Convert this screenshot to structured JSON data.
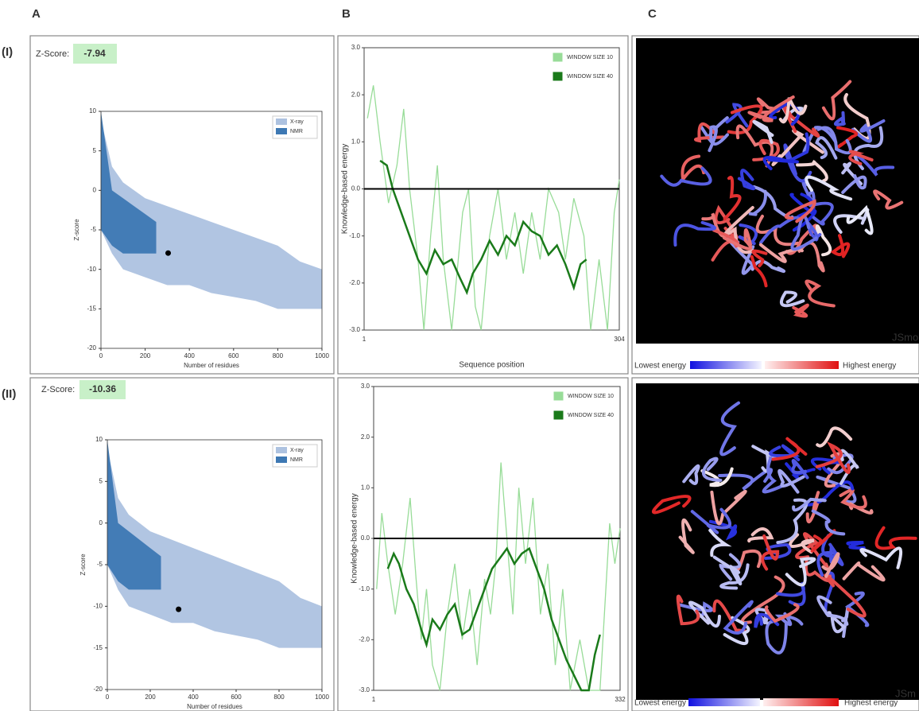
{
  "panels": [
    "A",
    "B",
    "C"
  ],
  "rows": [
    {
      "label": "(I)",
      "zscore_label": "Z-Score:",
      "zscore": -7.94,
      "structure": {
        "lowest": "Lowest energy",
        "highest": "Highest energy",
        "watermark": "JSmo"
      }
    },
    {
      "label": "(II)",
      "zscore_label": "Z-Score:",
      "zscore": -10.36,
      "structure": {
        "lowest": "Lowest energy",
        "highest": "Highest energy",
        "watermark": "JSm"
      }
    }
  ],
  "chart_data": [
    {
      "type": "scatter",
      "xlabel": "Number of residues",
      "ylabel": "Z-score",
      "xlim": [
        0,
        1000
      ],
      "xticks": [
        0,
        200,
        400,
        600,
        800,
        1000
      ],
      "ylim": [
        -20,
        10
      ],
      "yticks": [
        -20,
        -15,
        -10,
        -5,
        0,
        5,
        10
      ],
      "legend": "upper right",
      "series": [
        {
          "name": "X-ray",
          "color": "#adc2e0",
          "x": [
            0,
            50,
            100,
            200,
            300,
            400,
            500,
            600,
            700,
            800,
            900,
            1000
          ],
          "high": [
            9,
            3,
            1,
            -1,
            -2,
            -3,
            -4,
            -5,
            -6,
            -7,
            -9,
            -10
          ],
          "low": [
            -5,
            -8,
            -10,
            -11,
            -12,
            -12,
            -13,
            -13.5,
            -14,
            -15,
            -15,
            -15
          ]
        },
        {
          "name": "NMR",
          "color": "#3d78b3",
          "x": [
            0,
            50,
            100,
            150,
            200,
            250
          ],
          "high": [
            10,
            0,
            -1,
            -2,
            -3,
            -4
          ],
          "low": [
            -5,
            -7,
            -8,
            -8,
            -8,
            -8
          ]
        }
      ],
      "highlight": {
        "x": 304,
        "y": -7.94
      }
    },
    {
      "type": "line",
      "xlabel": "Sequence position",
      "ylabel": "Knowledge-based energy",
      "xlim": [
        1,
        304
      ],
      "xticks": [
        1,
        304
      ],
      "ylim": [
        -3,
        3
      ],
      "yticks": [
        {
          "value": 3,
          "label": "3.0"
        },
        {
          "value": 2,
          "label": "2.0"
        },
        {
          "value": 1,
          "label": "1.0"
        },
        {
          "value": 0,
          "label": "0.0"
        },
        {
          "value": -1,
          "label": "-1.0"
        },
        {
          "value": -2,
          "label": "-2.0"
        },
        {
          "value": -3,
          "label": "-3.0"
        }
      ],
      "zero_line": 0,
      "legend": "upper right",
      "series": [
        {
          "name": "WINDOW SIZE 10",
          "color": "#98dc98",
          "x": [
            5,
            12,
            20,
            30,
            40,
            48,
            55,
            65,
            72,
            80,
            88,
            95,
            105,
            118,
            125,
            133,
            140,
            150,
            160,
            170,
            180,
            190,
            200,
            210,
            220,
            232,
            240,
            250,
            262,
            270,
            280,
            290,
            298,
            304
          ],
          "values": [
            1.5,
            2.2,
            1.0,
            -0.3,
            0.5,
            1.7,
            0.0,
            -1.5,
            -3.0,
            -1.0,
            0.5,
            -1.5,
            -3.0,
            -0.5,
            0.0,
            -2.5,
            -3.0,
            -1.0,
            0.0,
            -1.5,
            -0.5,
            -1.8,
            -0.5,
            -1.5,
            0.0,
            -0.5,
            -1.5,
            -0.2,
            -1.0,
            -3.0,
            -1.5,
            -3.0,
            -0.5,
            0.2
          ]
        },
        {
          "name": "WINDOW SIZE 40",
          "color": "#1a7a1a",
          "x": [
            20,
            28,
            35,
            45,
            55,
            65,
            75,
            85,
            95,
            105,
            115,
            123,
            130,
            140,
            150,
            160,
            170,
            180,
            190,
            200,
            210,
            220,
            230,
            240,
            250,
            258,
            265
          ],
          "values": [
            0.6,
            0.5,
            0.0,
            -0.5,
            -1.0,
            -1.5,
            -1.8,
            -1.3,
            -1.6,
            -1.5,
            -1.9,
            -2.2,
            -1.8,
            -1.5,
            -1.1,
            -1.4,
            -1.0,
            -1.2,
            -0.7,
            -0.9,
            -1.0,
            -1.4,
            -1.2,
            -1.6,
            -2.1,
            -1.6,
            -1.5
          ]
        }
      ]
    },
    {
      "type": "scatter",
      "xlabel": "Number of residues",
      "ylabel": "Z-score",
      "xlim": [
        0,
        1000
      ],
      "xticks": [
        0,
        200,
        400,
        600,
        800,
        1000
      ],
      "ylim": [
        -20,
        10
      ],
      "yticks": [
        -20,
        -15,
        -10,
        -5,
        0,
        5,
        10
      ],
      "legend": "upper right",
      "series": [
        {
          "name": "X-ray",
          "color": "#adc2e0",
          "x": [
            0,
            50,
            100,
            200,
            300,
            400,
            500,
            600,
            700,
            800,
            900,
            1000
          ],
          "high": [
            9,
            3,
            1,
            -1,
            -2,
            -3,
            -4,
            -5,
            -6,
            -7,
            -9,
            -10
          ],
          "low": [
            -5,
            -8,
            -10,
            -11,
            -12,
            -12,
            -13,
            -13.5,
            -14,
            -15,
            -15,
            -15
          ]
        },
        {
          "name": "NMR",
          "color": "#3d78b3",
          "x": [
            0,
            50,
            100,
            150,
            200,
            250
          ],
          "high": [
            10,
            0,
            -1,
            -2,
            -3,
            -4
          ],
          "low": [
            -5,
            -7,
            -8,
            -8,
            -8,
            -8
          ]
        }
      ],
      "highlight": {
        "x": 332,
        "y": -10.36
      }
    },
    {
      "type": "line",
      "ylabel": "Knowledge-based energy",
      "xlim": [
        1,
        332
      ],
      "xticks": [
        1,
        332
      ],
      "ylim": [
        -3,
        3
      ],
      "yticks": [
        {
          "value": 3,
          "label": "3.0"
        },
        {
          "value": 2,
          "label": "2.0"
        },
        {
          "value": 1,
          "label": "1.0"
        },
        {
          "value": 0,
          "label": "0.0"
        },
        {
          "value": -1,
          "label": "-1.0"
        },
        {
          "value": -2,
          "label": "-2.0"
        },
        {
          "value": -3,
          "label": "-3.0"
        }
      ],
      "zero_line": 0,
      "legend": "upper right",
      "series": [
        {
          "name": "WINDOW SIZE 10",
          "color": "#98dc98",
          "x": [
            5,
            12,
            20,
            30,
            40,
            50,
            58,
            65,
            72,
            80,
            90,
            100,
            110,
            120,
            130,
            140,
            150,
            158,
            165,
            172,
            180,
            188,
            196,
            205,
            215,
            225,
            235,
            245,
            255,
            265,
            278,
            290,
            305,
            318,
            325,
            332
          ],
          "values": [
            -1.0,
            0.5,
            -0.5,
            -1.5,
            -0.5,
            0.8,
            -0.8,
            -2.0,
            -1.0,
            -2.5,
            -3.0,
            -1.5,
            -0.5,
            -2.0,
            -1.0,
            -2.5,
            -0.8,
            -1.5,
            -0.5,
            1.5,
            0.0,
            -1.5,
            1.0,
            -0.5,
            0.8,
            -1.5,
            -0.5,
            -2.5,
            -1.0,
            -3.0,
            -2.0,
            -3.0,
            -3.0,
            0.3,
            -0.5,
            0.2
          ]
        },
        {
          "name": "WINDOW SIZE 40",
          "color": "#1a7a1a",
          "x": [
            20,
            28,
            35,
            45,
            55,
            65,
            72,
            80,
            90,
            100,
            110,
            120,
            130,
            140,
            150,
            160,
            170,
            180,
            190,
            200,
            210,
            220,
            230,
            240,
            250,
            260,
            270,
            280,
            290,
            298,
            305
          ],
          "values": [
            -0.6,
            -0.3,
            -0.5,
            -1.0,
            -1.3,
            -1.8,
            -2.1,
            -1.6,
            -1.8,
            -1.5,
            -1.3,
            -1.9,
            -1.8,
            -1.4,
            -1.0,
            -0.6,
            -0.4,
            -0.2,
            -0.5,
            -0.3,
            -0.2,
            -0.6,
            -1.0,
            -1.6,
            -2.0,
            -2.4,
            -2.7,
            -3.0,
            -3.0,
            -2.3,
            -1.9
          ]
        }
      ]
    }
  ]
}
